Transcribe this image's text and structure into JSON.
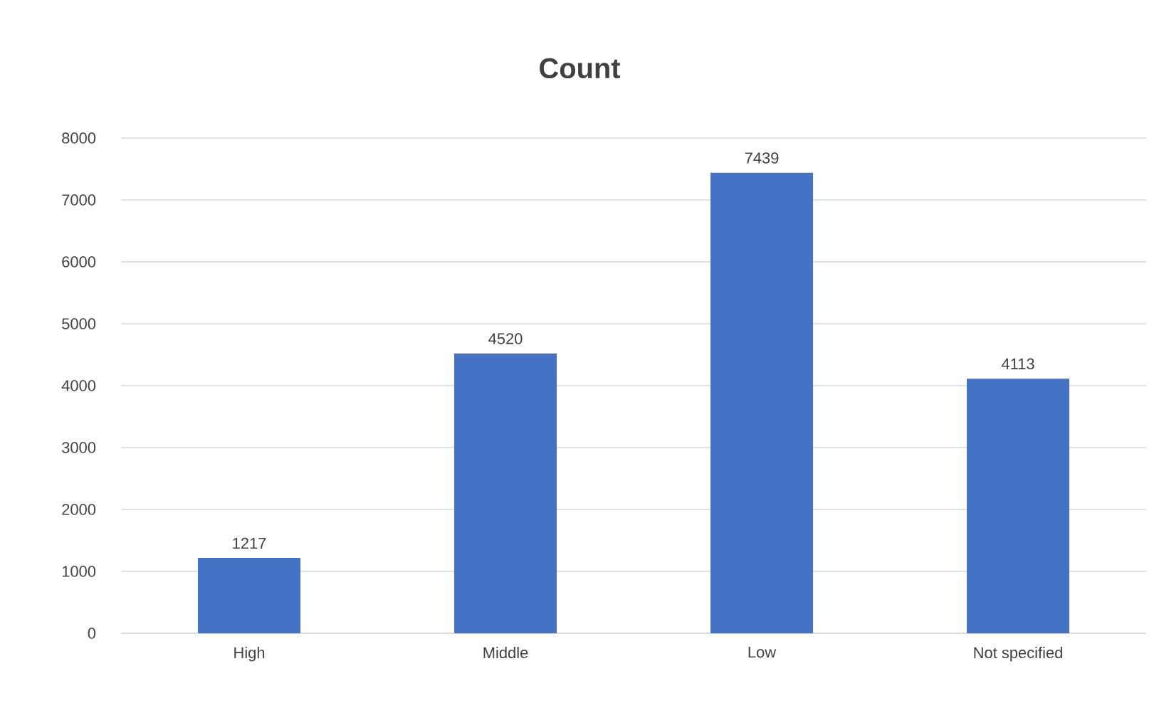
{
  "chart_data": {
    "type": "bar",
    "title": "Count",
    "categories": [
      "High",
      "Middle",
      "Low",
      "Not specified"
    ],
    "values": [
      1217,
      4520,
      7439,
      4113
    ],
    "color": "#4472c4",
    "ylim": [
      0,
      8000
    ],
    "yticks": [
      0,
      1000,
      2000,
      3000,
      4000,
      5000,
      6000,
      7000,
      8000
    ],
    "grid": "y",
    "data_labels": true
  }
}
